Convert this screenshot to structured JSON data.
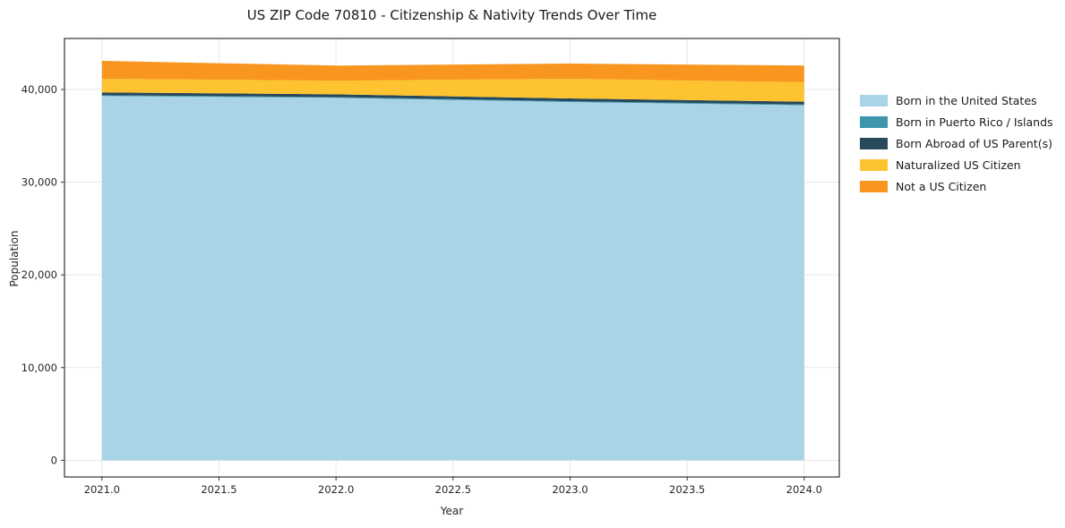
{
  "title": "US ZIP Code 70810 - Citizenship & Nativity Trends Over Time",
  "chart_data": {
    "type": "area",
    "stacked": true,
    "title": "US ZIP Code 70810 - Citizenship & Nativity Trends Over Time",
    "xlabel": "Year",
    "ylabel": "Population",
    "x": [
      2021,
      2022,
      2023,
      2024
    ],
    "series": [
      {
        "name": "Born in the United States",
        "color": "#a9d3e6",
        "values": [
          39300,
          39100,
          38650,
          38300
        ]
      },
      {
        "name": "Born in Puerto Rico / Islands",
        "color": "#3e96ad",
        "values": [
          80,
          80,
          80,
          80
        ]
      },
      {
        "name": "Born Abroad of US Parent(s)",
        "color": "#28495c",
        "values": [
          300,
          300,
          300,
          300
        ]
      },
      {
        "name": "Naturalized US Citizen",
        "color": "#fdc330",
        "values": [
          1480,
          1470,
          2130,
          2100
        ]
      },
      {
        "name": "Not a US Citizen",
        "color": "#f8961f",
        "values": [
          1930,
          1630,
          1640,
          1800
        ]
      }
    ],
    "xlim": [
      2020.84,
      2024.15
    ],
    "ylim": [
      -1800,
      45500
    ],
    "xticks": [
      2021.0,
      2021.5,
      2022.0,
      2022.5,
      2023.0,
      2023.5,
      2024.0
    ],
    "yticks": [
      0,
      10000,
      20000,
      30000,
      40000
    ],
    "grid": true,
    "legend_position": "right",
    "colors": {
      "grid": "#e5e5e5",
      "spine": "#333333",
      "tick_label": "#262626"
    }
  }
}
